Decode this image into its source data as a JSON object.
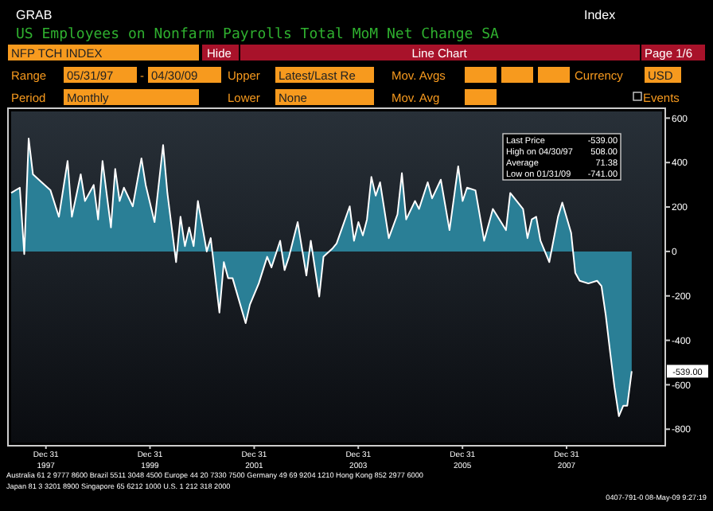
{
  "chart_data": {
    "type": "area",
    "title": "US Employees on Nonfarm Payrolls Total MoM Net Change SA",
    "x": [
      "1997-05",
      "1997-07",
      "1997-08",
      "1997-09",
      "1997-10",
      "1997-12",
      "1998-02",
      "1998-04",
      "1998-06",
      "1998-07",
      "1998-09",
      "1998-10",
      "1998-12",
      "1999-01",
      "1999-02",
      "1999-04",
      "1999-05",
      "1999-06",
      "1999-07",
      "1999-09",
      "1999-11",
      "1999-12",
      "2000-02",
      "2000-04",
      "2000-05",
      "2000-07",
      "2000-08",
      "2000-09",
      "2000-10",
      "2000-11",
      "2000-12",
      "2001-02",
      "2001-03",
      "2001-05",
      "2001-06",
      "2001-07",
      "2001-08",
      "2001-11",
      "2001-12",
      "2002-02",
      "2002-04",
      "2002-05",
      "2002-07",
      "2002-08",
      "2002-09",
      "2002-11",
      "2003-01",
      "2003-02",
      "2003-04",
      "2003-05",
      "2003-07",
      "2003-08",
      "2003-11",
      "2003-12",
      "2004-01",
      "2004-02",
      "2004-03",
      "2004-04",
      "2004-05",
      "2004-06",
      "2004-08",
      "2004-10",
      "2004-11",
      "2004-12",
      "2005-02",
      "2005-03",
      "2005-05",
      "2005-06",
      "2005-08",
      "2005-10",
      "2005-12",
      "2006-01",
      "2006-02",
      "2006-04",
      "2006-06",
      "2006-08",
      "2006-11",
      "2006-12",
      "2007-03",
      "2007-04",
      "2007-05",
      "2007-06",
      "2007-07",
      "2007-09",
      "2007-11",
      "2007-12",
      "2008-02",
      "2008-03",
      "2008-04",
      "2008-06",
      "2008-08",
      "2008-09",
      "2008-10",
      "2008-11",
      "2008-12",
      "2009-01",
      "2009-02",
      "2009-03",
      "2009-04"
    ],
    "series": [
      {
        "color": "#2a7f96",
        "values": [
          263,
          287,
          -12,
          508,
          347,
          311,
          275,
          156,
          407,
          156,
          347,
          227,
          299,
          144,
          407,
          108,
          371,
          227,
          287,
          203,
          419,
          299,
          132,
          479,
          263,
          -48,
          156,
          24,
          108,
          24,
          227,
          0,
          60,
          -275,
          -48,
          -120,
          -120,
          -323,
          -239,
          -144,
          -24,
          -72,
          48,
          -84,
          -24,
          132,
          -108,
          48,
          -203,
          -24,
          12,
          36,
          203,
          48,
          132,
          72,
          144,
          335,
          251,
          311,
          60,
          167,
          352,
          144,
          227,
          191,
          311,
          239,
          323,
          96,
          383,
          227,
          287,
          275,
          48,
          191,
          96,
          263,
          191,
          60,
          144,
          156,
          48,
          -48,
          156,
          220,
          84,
          -96,
          -132,
          -144,
          -132,
          -156,
          -287,
          -455,
          -610,
          -741,
          -694,
          -694,
          -539
        ]
      }
    ],
    "xlim": [
      "1997-05-01",
      "2009-10-31"
    ],
    "xticks": [
      {
        "value": "1997-12-31",
        "label": "Dec 31\n1997"
      },
      {
        "value": "1999-12-31",
        "label": "Dec 31\n1999"
      },
      {
        "value": "2001-12-31",
        "label": "Dec 31\n2001"
      },
      {
        "value": "2003-12-31",
        "label": "Dec 31\n2003"
      },
      {
        "value": "2005-12-31",
        "label": "Dec 31\n2005"
      },
      {
        "value": "2007-12-31",
        "label": "Dec 31\n2007"
      }
    ],
    "ylim": [
      -860,
      630
    ],
    "yticks": [
      -800,
      -600,
      -400,
      -200,
      0,
      200,
      400,
      600
    ],
    "annotations": [
      "GRAB",
      "Index",
      "NFP TCH INDEX",
      "Hide",
      "Line Chart",
      "Page 1/6",
      "Range",
      "05/31/97",
      "-",
      "04/30/09",
      "Upper",
      "Latest/Last Re",
      "Mov. Avgs",
      "Currency",
      "USD",
      "Period",
      "Monthly",
      "Lower",
      "None",
      "Mov. Avg",
      "Events",
      "Last Price",
      "-539.00",
      "High on 04/30/97",
      "508.00",
      "Average",
      "71.38",
      "Low on 01/31/09",
      "-741.00",
      "Australia 61 2 9777 8600 Brazil 5511 3048 4500 Europe 44 20 7330 7500 Germany 49 69 9204 1210 Hong Kong 852 2977 6000",
      "Japan 81 3 3201 8900     Singapore 65 6212 1000     U.S. 1 212 318 2000",
      "0407-791-0 08-May-09  9:27:19",
      "-539.00"
    ]
  }
}
